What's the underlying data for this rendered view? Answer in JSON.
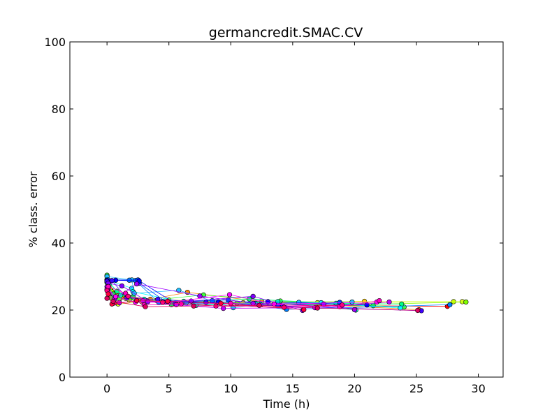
{
  "chart_data": {
    "type": "scatter",
    "title": "germancredit.SMAC.CV",
    "xlabel": "Time (h)",
    "ylabel": "% class. error",
    "xlim": [
      -3,
      32
    ],
    "ylim": [
      0,
      100
    ],
    "xticks": [
      0,
      5,
      10,
      15,
      20,
      25,
      30
    ],
    "yticks": [
      0,
      20,
      40,
      60,
      80,
      100
    ],
    "grid": false,
    "series": [
      {
        "color": "#ff0000",
        "x": [
          0.0,
          0.2,
          0.8,
          2.5,
          7.0,
          14.0,
          27.5
        ],
        "y": [
          28.9,
          27.5,
          24.5,
          23.0,
          22.0,
          21.5,
          21.1
        ]
      },
      {
        "color": "#ff8000",
        "x": [
          0.0,
          0.3,
          1.2,
          3.5,
          6.5,
          12.5,
          25.2
        ],
        "y": [
          29.0,
          26.0,
          24.0,
          23.2,
          25.3,
          22.5,
          20.1
        ]
      },
      {
        "color": "#ffd000",
        "x": [
          0.1,
          0.5,
          2.0,
          5.0,
          11.0,
          20.8
        ],
        "y": [
          28.5,
          25.0,
          23.8,
          23.0,
          22.2,
          22.6
        ]
      },
      {
        "color": "#c8ff00",
        "x": [
          0.0,
          0.4,
          1.5,
          4.0,
          9.0,
          17.0,
          28.0
        ],
        "y": [
          28.7,
          25.5,
          23.5,
          22.8,
          22.4,
          22.2,
          22.5
        ]
      },
      {
        "color": "#e0ff20",
        "x": [
          0.1,
          0.9,
          2.8,
          6.0,
          13.0,
          28.7
        ],
        "y": [
          27.8,
          21.8,
          22.5,
          22.0,
          22.5,
          22.5
        ]
      },
      {
        "color": "#80ff00",
        "x": [
          0.0,
          0.6,
          1.8,
          4.5,
          10.5,
          19.0,
          29.0
        ],
        "y": [
          29.0,
          24.2,
          23.0,
          22.5,
          22.0,
          21.5,
          22.4
        ]
      },
      {
        "color": "#40ff40",
        "x": [
          0.0,
          0.3,
          1.0,
          3.2,
          7.8,
          14.0,
          24.0
        ],
        "y": [
          30.4,
          23.6,
          23.2,
          22.8,
          24.5,
          22.7,
          20.9
        ]
      },
      {
        "color": "#20e060",
        "x": [
          0.0,
          0.5,
          2.1,
          5.2,
          12.0,
          21.5
        ],
        "y": [
          28.2,
          24.8,
          24.0,
          21.6,
          22.0,
          21.3
        ]
      },
      {
        "color": "#00ff80",
        "x": [
          0.0,
          0.8,
          2.4,
          6.2,
          11.5,
          18.5,
          23.8
        ],
        "y": [
          29.1,
          25.6,
          22.8,
          22.6,
          23.3,
          22.0,
          21.8
        ]
      },
      {
        "color": "#00ffc0",
        "x": [
          0.1,
          1.1,
          3.0,
          7.2,
          13.8,
          20.1
        ],
        "y": [
          28.4,
          24.4,
          23.2,
          21.4,
          22.5,
          20.0
        ]
      },
      {
        "color": "#00ffff",
        "x": [
          0.0,
          2.0,
          2.1,
          6.4,
          12.4,
          17.3,
          23.7
        ],
        "y": [
          29.0,
          26.5,
          25.5,
          22.1,
          21.6,
          22.2,
          20.6
        ]
      },
      {
        "color": "#20c0ff",
        "x": [
          0.0,
          2.0,
          2.2,
          5.8,
          10.2,
          15.5,
          19.8
        ],
        "y": [
          30.0,
          29.0,
          25.0,
          25.9,
          20.7,
          22.3,
          22.4
        ]
      },
      {
        "color": "#0080ff",
        "x": [
          0.0,
          1.8,
          2.3,
          4.2,
          8.5,
          14.5,
          27.7
        ],
        "y": [
          29.0,
          28.9,
          28.8,
          22.2,
          22.8,
          20.2,
          21.6
        ]
      },
      {
        "color": "#0040ff",
        "x": [
          0.1,
          2.5,
          2.6,
          4.8,
          9.8,
          13.8,
          18.8
        ],
        "y": [
          29.0,
          29.0,
          28.0,
          22.4,
          23.0,
          21.3,
          22.3
        ]
      },
      {
        "color": "#0000ff",
        "x": [
          0.0,
          0.7,
          2.6,
          5.5,
          9.0,
          13.0,
          21.0
        ],
        "y": [
          28.8,
          28.9,
          28.7,
          22.0,
          22.4,
          22.5,
          21.5
        ]
      },
      {
        "color": "#4000ff",
        "x": [
          0.0,
          0.4,
          1.6,
          4.1,
          8.0,
          14.2,
          25.4
        ],
        "y": [
          28.6,
          28.8,
          23.6,
          23.2,
          22.3,
          21.2,
          19.8
        ]
      },
      {
        "color": "#8000ff",
        "x": [
          0.1,
          1.2,
          3.3,
          6.8,
          11.8,
          15.8
        ],
        "y": [
          28.0,
          27.2,
          22.5,
          22.7,
          24.1,
          19.9
        ]
      },
      {
        "color": "#a000ff",
        "x": [
          0.0,
          0.6,
          2.4,
          7.5,
          11.8,
          17.5,
          20.0
        ],
        "y": [
          27.0,
          23.2,
          27.8,
          24.2,
          22.0,
          21.8,
          20.1
        ]
      },
      {
        "color": "#c000ff",
        "x": [
          0.1,
          1.0,
          2.9,
          5.6,
          9.4,
          16.8,
          22.8
        ],
        "y": [
          26.5,
          22.2,
          22.8,
          21.6,
          20.5,
          20.7,
          22.4
        ]
      },
      {
        "color": "#ff00ff",
        "x": [
          0.0,
          0.7,
          2.3,
          5.0,
          9.9,
          13.5,
          21.8
        ],
        "y": [
          26.2,
          24.0,
          22.4,
          22.3,
          24.6,
          21.8,
          22.4
        ]
      },
      {
        "color": "#ff00c0",
        "x": [
          0.1,
          1.5,
          3.0,
          6.0,
          10.0,
          18.8,
          22.0
        ],
        "y": [
          27.0,
          25.0,
          21.5,
          21.8,
          22.0,
          21.0,
          22.8
        ]
      },
      {
        "color": "#ff0080",
        "x": [
          0.0,
          0.6,
          1.7,
          4.5,
          8.8,
          14.3,
          19.0
        ],
        "y": [
          25.8,
          22.1,
          24.1,
          22.3,
          21.2,
          20.8,
          21.5
        ]
      },
      {
        "color": "#ff0040",
        "x": [
          0.1,
          0.4,
          2.4,
          4.9,
          9.2,
          15.9
        ],
        "y": [
          24.8,
          21.8,
          22.8,
          22.6,
          22.0,
          20.1
        ]
      },
      {
        "color": "#e00060",
        "x": [
          0.0,
          0.5,
          3.1,
          7.0,
          12.3,
          17.0,
          25.1
        ],
        "y": [
          23.5,
          22.6,
          21.0,
          21.2,
          21.4,
          20.6,
          19.9
        ]
      }
    ]
  }
}
